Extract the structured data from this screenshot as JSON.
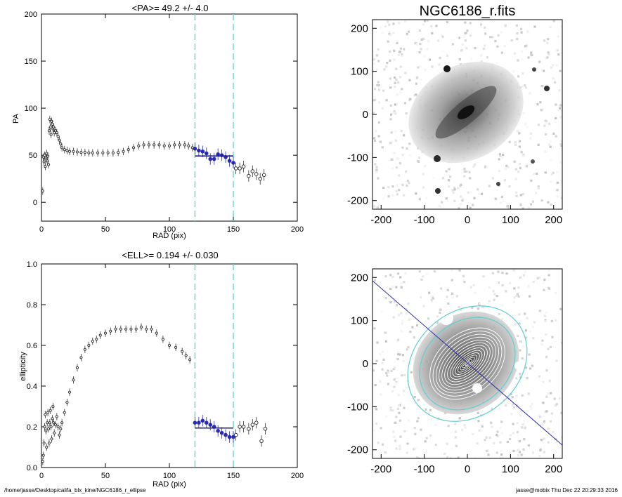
{
  "footer": {
    "path": "/home/jasse/Desktop/califa_blx_kine/NGC6186_r_ellipse",
    "stamp": "jasse@mobix  Thu Dec 22 20:29:33 2016"
  },
  "colors": {
    "fit_line": "#1a1a8c",
    "dashed_lines": "#5fcfcf",
    "fit_points": "#2a2ab0",
    "points": "#333333"
  },
  "chart_data": [
    {
      "type": "scatter",
      "title": "<PA>=  49.2 +/-   4.0",
      "xlabel": "RAD (pix)",
      "ylabel": "PA",
      "xlim": [
        0,
        200
      ],
      "ylim": [
        -20,
        200
      ],
      "xticks": [
        0,
        50,
        100,
        150,
        200
      ],
      "yticks": [
        0,
        50,
        100,
        150,
        200
      ],
      "vlines": [
        120,
        150
      ],
      "mean_line": {
        "x": [
          120,
          150
        ],
        "y": 49.2
      },
      "series": [
        {
          "x": [
            1,
            1.5,
            2,
            2.5,
            3,
            3.5,
            4,
            4.5,
            5,
            5.5,
            6,
            6.5,
            7,
            7.5,
            8,
            8.5,
            9,
            9.5,
            10,
            11,
            12,
            13,
            14,
            15,
            16,
            18,
            20,
            22,
            25,
            28,
            31,
            34,
            37,
            40,
            44,
            48,
            52,
            56,
            60,
            64,
            68,
            72,
            76,
            80,
            84,
            88,
            92,
            96,
            100,
            104,
            108,
            112,
            115,
            118
          ],
          "y": [
            12,
            48,
            43,
            50,
            38,
            46,
            52,
            44,
            49,
            40,
            76,
            88,
            80,
            72,
            86,
            83,
            78,
            80,
            74,
            76,
            74,
            70,
            66,
            62,
            58,
            56,
            55,
            54,
            54,
            53.5,
            53,
            53,
            52.5,
            52.5,
            52.5,
            52.5,
            52.5,
            52.5,
            53,
            54,
            56,
            58,
            60,
            61,
            61,
            61,
            61,
            60,
            60,
            61,
            61,
            61,
            60,
            58
          ]
        },
        {
          "x": [
            120,
            123,
            126,
            129,
            132,
            135,
            138,
            141,
            144,
            147,
            150
          ],
          "y": [
            57,
            55,
            54,
            52,
            46,
            46,
            51,
            50,
            48,
            44,
            42
          ]
        },
        {
          "x": [
            152,
            155,
            158,
            162,
            165,
            168,
            171,
            174
          ],
          "y": [
            36,
            36,
            38,
            28,
            33,
            30,
            25,
            29
          ]
        }
      ]
    },
    {
      "type": "scatter",
      "title": "<ELL>= 0.194 +/-  0.030",
      "xlabel": "RAD (pix)",
      "ylabel": "ellipticity",
      "xlim": [
        0,
        200
      ],
      "ylim": [
        0,
        1.0
      ],
      "xticks": [
        0,
        50,
        100,
        150,
        200
      ],
      "yticks": [
        0.0,
        0.2,
        0.4,
        0.6,
        0.8,
        1.0
      ],
      "vlines": [
        120,
        150
      ],
      "mean_line": {
        "x": [
          120,
          150
        ],
        "y": 0.194
      },
      "series": [
        {
          "x": [
            1,
            1.5,
            2,
            2.5,
            3,
            3.5,
            4,
            4.5,
            5,
            5.5,
            6,
            6.5,
            7,
            7.5,
            8,
            8.5,
            9,
            9.5,
            10,
            11,
            12,
            13,
            14,
            15,
            16,
            18,
            20,
            22,
            25,
            28,
            31,
            34,
            37,
            40,
            43,
            46,
            50,
            54,
            58,
            62,
            66,
            70,
            74,
            78,
            82,
            86,
            90,
            95,
            100,
            105,
            110,
            113,
            116
          ],
          "y": [
            0.03,
            0.06,
            0.12,
            0.2,
            0.26,
            0.18,
            0.1,
            0.22,
            0.27,
            0.19,
            0.12,
            0.22,
            0.28,
            0.2,
            0.14,
            0.24,
            0.3,
            0.22,
            0.17,
            0.21,
            0.25,
            0.2,
            0.16,
            0.19,
            0.22,
            0.27,
            0.32,
            0.37,
            0.43,
            0.49,
            0.54,
            0.58,
            0.6,
            0.62,
            0.63,
            0.65,
            0.66,
            0.67,
            0.68,
            0.68,
            0.68,
            0.68,
            0.68,
            0.69,
            0.68,
            0.68,
            0.66,
            0.63,
            0.6,
            0.59,
            0.57,
            0.55,
            0.53
          ]
        },
        {
          "x": [
            120,
            123,
            126,
            129,
            132,
            135,
            138,
            141,
            144,
            147,
            150
          ],
          "y": [
            0.22,
            0.22,
            0.23,
            0.22,
            0.21,
            0.2,
            0.18,
            0.17,
            0.16,
            0.15,
            0.15
          ]
        },
        {
          "x": [
            152,
            155,
            158,
            162,
            165,
            168,
            172,
            175
          ],
          "y": [
            0.16,
            0.2,
            0.2,
            0.19,
            0.21,
            0.22,
            0.13,
            0.19
          ]
        }
      ]
    },
    {
      "type": "heatmap",
      "title": "NGC6186_r.fits",
      "xlim": [
        -220,
        220
      ],
      "ylim": [
        -220,
        220
      ],
      "xticks": [
        -200,
        -100,
        0,
        100,
        200
      ],
      "yticks": [
        -200,
        -100,
        0,
        100,
        200
      ]
    },
    {
      "type": "heatmap",
      "title": "",
      "xlim": [
        -220,
        220
      ],
      "ylim": [
        -220,
        220
      ],
      "xticks": [
        -200,
        -100,
        0,
        100,
        200
      ],
      "yticks": [
        -200,
        -100,
        0,
        100,
        200
      ],
      "ellipses_pa_deg": 49.2,
      "ellipticity": 0.194,
      "inner_radius": 120,
      "outer_radius": 150
    }
  ]
}
